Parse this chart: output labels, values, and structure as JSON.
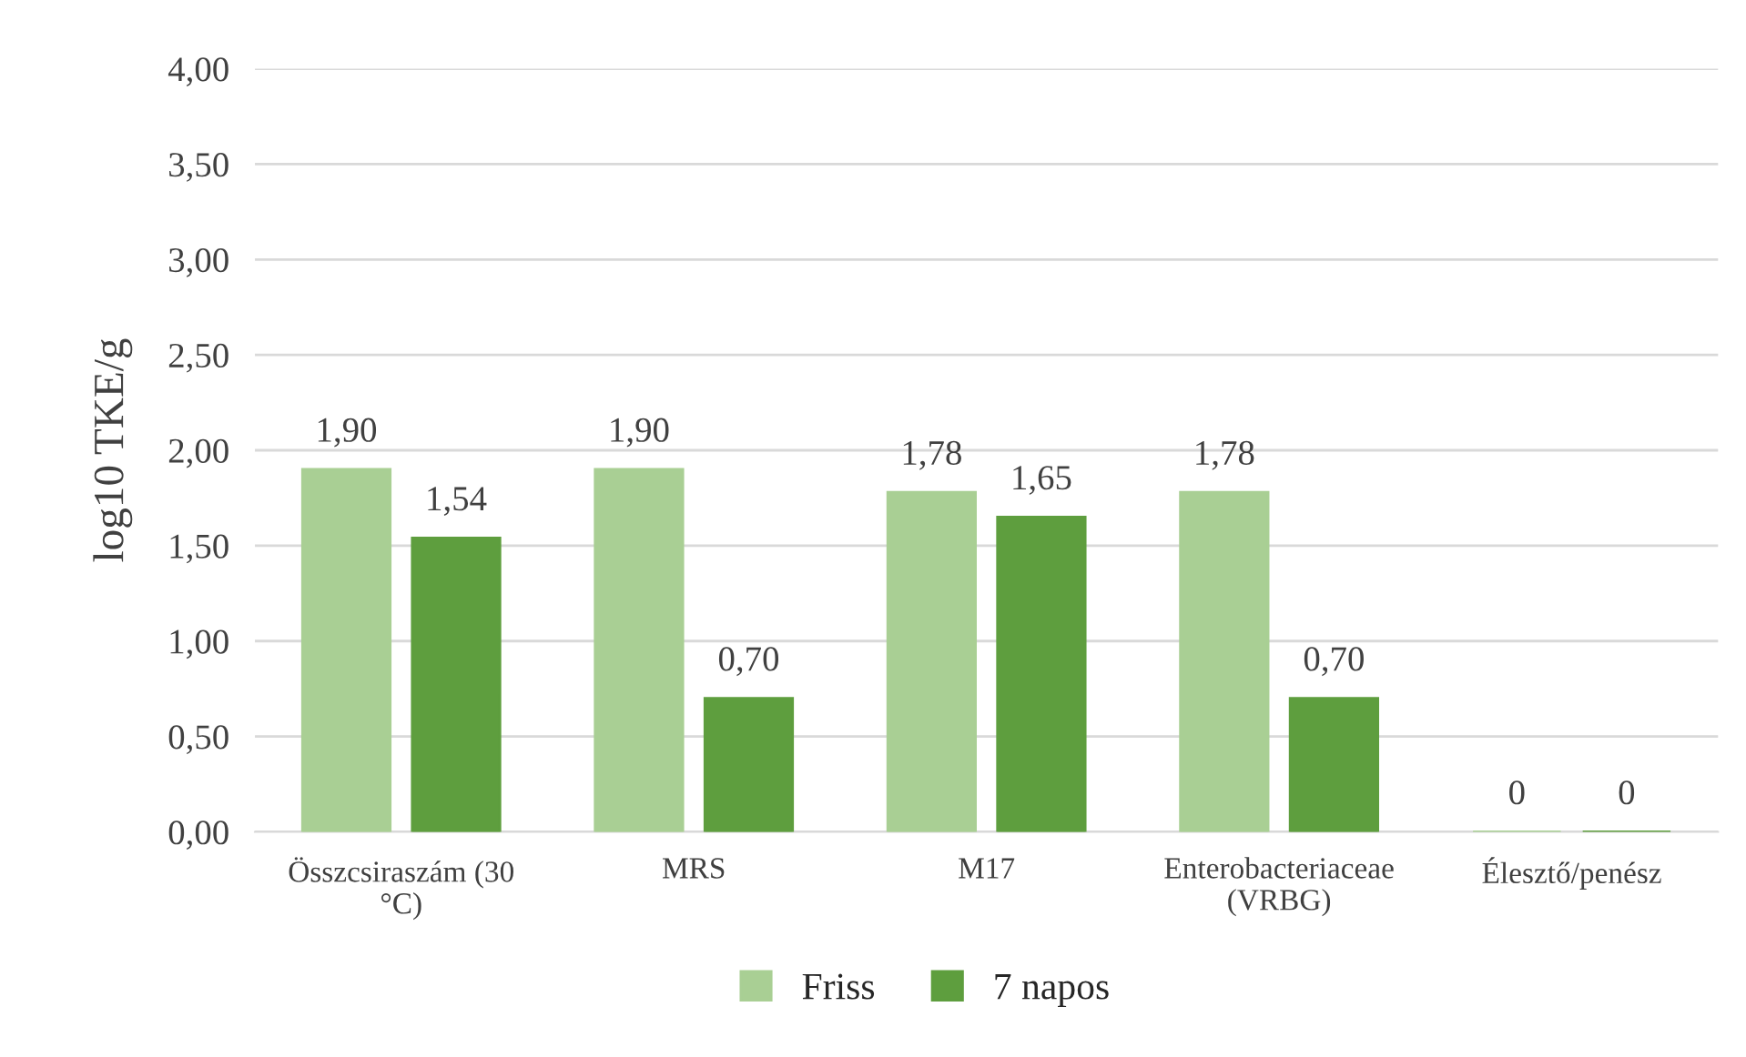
{
  "chart_data": {
    "type": "bar",
    "ylabel": "log10 TKE/g",
    "categories": [
      "Összcsiraszám (30\n°C)",
      "MRS",
      "M17",
      "Enterobacteriaceae\n(VRBG)",
      "Élesztő/penész"
    ],
    "series": [
      {
        "name": "Friss",
        "color": "#a9cf94",
        "values": [
          1.9,
          1.9,
          1.78,
          1.78,
          0
        ],
        "value_labels": [
          "1,90",
          "1,90",
          "1,78",
          "1,78",
          "0"
        ]
      },
      {
        "name": "7 napos",
        "color": "#5e9e3e",
        "values": [
          1.54,
          0.7,
          1.65,
          0.7,
          0
        ],
        "value_labels": [
          "1,54",
          "0,70",
          "1,65",
          "0,70",
          "0"
        ]
      }
    ],
    "ylim": [
      0,
      4
    ],
    "yticks": [
      {
        "value": 0,
        "label": "0,00"
      },
      {
        "value": 0.5,
        "label": "0,50"
      },
      {
        "value": 1,
        "label": "1,00"
      },
      {
        "value": 1.5,
        "label": "1,50"
      },
      {
        "value": 2,
        "label": "2,00"
      },
      {
        "value": 2.5,
        "label": "2,50"
      },
      {
        "value": 3,
        "label": "3,00"
      },
      {
        "value": 3.5,
        "label": "3,50"
      },
      {
        "value": 4,
        "label": "4,00"
      }
    ],
    "grid": "y",
    "legend": "bottom"
  }
}
